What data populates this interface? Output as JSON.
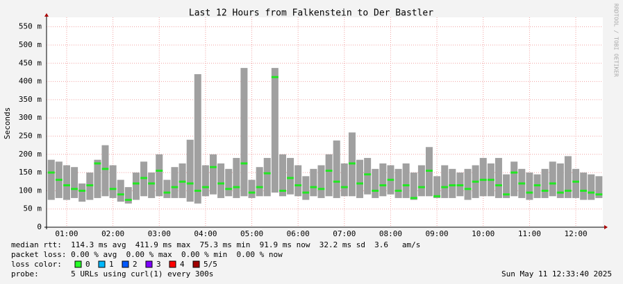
{
  "chart_data": {
    "type": "smokeping",
    "title": "Last 12 Hours from Falkenstein to Der Bastler",
    "y_label": "Seconds",
    "side_text": "RRDTOOL / TOBI OETIKER",
    "x": [
      0.667,
      0.833,
      1.0,
      1.167,
      1.333,
      1.5,
      1.667,
      1.833,
      2.0,
      2.167,
      2.333,
      2.5,
      2.667,
      2.833,
      3.0,
      3.167,
      3.333,
      3.5,
      3.667,
      3.833,
      4.0,
      4.167,
      4.333,
      4.5,
      4.667,
      4.833,
      5.0,
      5.167,
      5.333,
      5.5,
      5.667,
      5.833,
      6.0,
      6.167,
      6.333,
      6.5,
      6.667,
      6.833,
      7.0,
      7.167,
      7.333,
      7.5,
      7.667,
      7.833,
      8.0,
      8.167,
      8.333,
      8.5,
      8.667,
      8.833,
      9.0,
      9.167,
      9.333,
      9.5,
      9.667,
      9.833,
      10.0,
      10.167,
      10.333,
      10.5,
      10.667,
      10.833,
      11.0,
      11.167,
      11.333,
      11.5,
      11.667,
      11.833,
      12.0,
      12.167,
      12.333,
      12.5
    ],
    "median": [
      150,
      130,
      115,
      105,
      100,
      115,
      175,
      160,
      105,
      90,
      75,
      120,
      135,
      120,
      155,
      95,
      110,
      125,
      120,
      100,
      110,
      165,
      120,
      105,
      110,
      175,
      95,
      110,
      148,
      412,
      100,
      135,
      115,
      95,
      110,
      105,
      155,
      125,
      110,
      175,
      120,
      145,
      100,
      115,
      130,
      100,
      115,
      80,
      110,
      155,
      85,
      110,
      115,
      115,
      105,
      125,
      130,
      130,
      115,
      90,
      150,
      120,
      95,
      115,
      100,
      120,
      95,
      100,
      125,
      100,
      95,
      90
    ],
    "smoke_low": [
      75,
      80,
      75,
      80,
      70,
      75,
      80,
      85,
      80,
      70,
      65,
      75,
      85,
      80,
      85,
      80,
      80,
      80,
      70,
      65,
      85,
      90,
      80,
      85,
      80,
      85,
      80,
      85,
      85,
      95,
      85,
      90,
      85,
      75,
      85,
      80,
      85,
      80,
      85,
      85,
      80,
      90,
      80,
      85,
      90,
      80,
      80,
      75,
      85,
      85,
      80,
      80,
      80,
      85,
      75,
      80,
      85,
      85,
      80,
      80,
      85,
      80,
      75,
      80,
      80,
      85,
      80,
      80,
      80,
      75,
      75,
      80
    ],
    "smoke_high": [
      185,
      180,
      170,
      165,
      120,
      150,
      185,
      225,
      170,
      130,
      110,
      150,
      180,
      150,
      200,
      130,
      165,
      175,
      240,
      420,
      170,
      200,
      175,
      160,
      190,
      437,
      130,
      165,
      190,
      437,
      200,
      190,
      170,
      140,
      160,
      170,
      200,
      238,
      175,
      260,
      185,
      190,
      160,
      175,
      170,
      160,
      175,
      150,
      170,
      220,
      140,
      170,
      160,
      150,
      160,
      170,
      190,
      175,
      190,
      145,
      180,
      160,
      150,
      145,
      160,
      180,
      175,
      195,
      160,
      150,
      145,
      140
    ],
    "median_color": "#22e622",
    "smoke_color": "#a0a0a0",
    "xlim": [
      0.565,
      12.585
    ],
    "xticks": [
      {
        "value": 1,
        "label": "01:00"
      },
      {
        "value": 2,
        "label": "02:00"
      },
      {
        "value": 3,
        "label": "03:00"
      },
      {
        "value": 4,
        "label": "04:00"
      },
      {
        "value": 5,
        "label": "05:00"
      },
      {
        "value": 6,
        "label": "06:00"
      },
      {
        "value": 7,
        "label": "07:00"
      },
      {
        "value": 8,
        "label": "08:00"
      },
      {
        "value": 9,
        "label": "09:00"
      },
      {
        "value": 10,
        "label": "10:00"
      },
      {
        "value": 11,
        "label": "11:00"
      },
      {
        "value": 12,
        "label": "12:00"
      }
    ],
    "ylim": [
      0,
      576
    ],
    "yticks": [
      0,
      {
        "value": 50,
        "label": "50 m"
      },
      {
        "value": 100,
        "label": "100 m"
      },
      {
        "value": 150,
        "label": "150 m"
      },
      {
        "value": 200,
        "label": "200 m"
      },
      {
        "value": 250,
        "label": "250 m"
      },
      {
        "value": 300,
        "label": "300 m"
      },
      {
        "value": 350,
        "label": "350 m"
      },
      {
        "value": 400,
        "label": "400 m"
      },
      {
        "value": 450,
        "label": "450 m"
      },
      {
        "value": 500,
        "label": "500 m"
      },
      {
        "value": 550,
        "label": "550 m"
      }
    ],
    "grid": true,
    "stats": [
      "median rtt:  114.3 ms avg  411.9 ms max  75.3 ms min  91.9 ms now  32.2 ms sd  3.6   am/s",
      "packet loss: 0.00 % avg  0.00 % max  0.00 % min  0.00 % now"
    ],
    "loss_label": "loss color:",
    "loss_colors": [
      {
        "label": "0",
        "color": "#26ff26"
      },
      {
        "label": "1",
        "color": "#00b8ff"
      },
      {
        "label": "2",
        "color": "#0059ff"
      },
      {
        "label": "3",
        "color": "#7e00ff"
      },
      {
        "label": "4",
        "color": "#ff0000"
      },
      {
        "label": "5/5",
        "color": "#a10000"
      }
    ],
    "probe": "probe:       5 URLs using curl(1) every 300s",
    "timestamp": "Sun May 11 12:33:40 2025"
  }
}
